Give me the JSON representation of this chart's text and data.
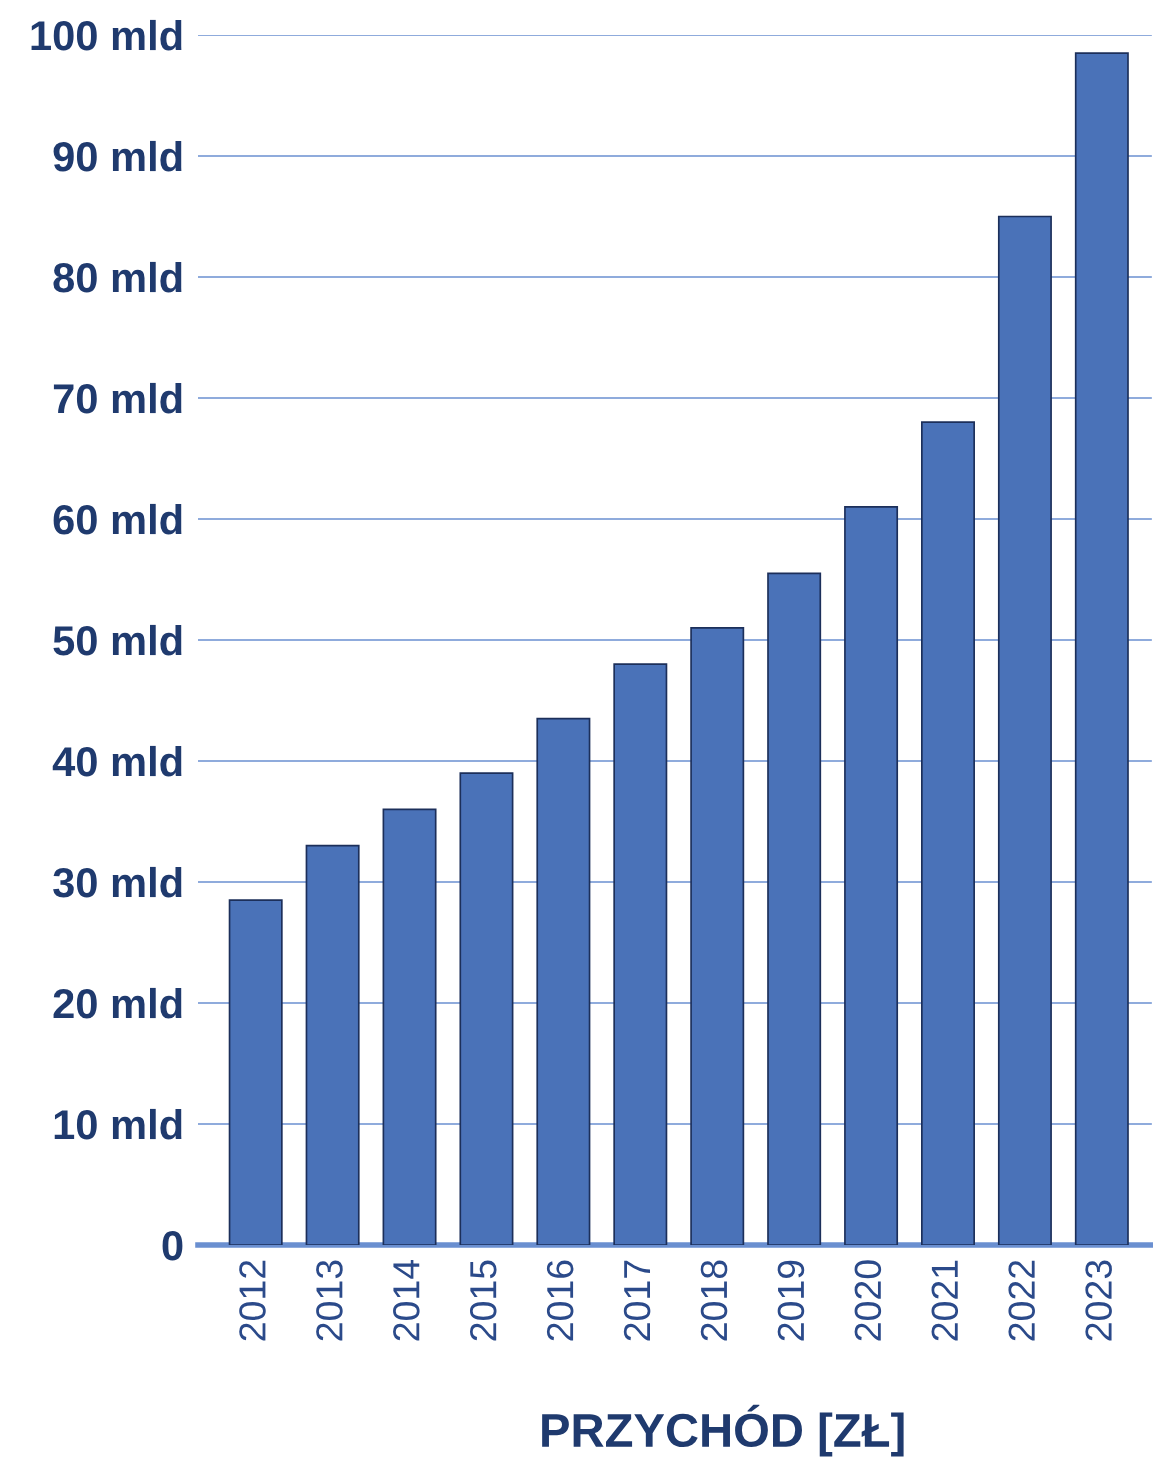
{
  "chart_data": {
    "type": "bar",
    "xlabel": "PRZYCHÓD [ZŁ]",
    "categories": [
      "2012",
      "2013",
      "2014",
      "2015",
      "2016",
      "2017",
      "2018",
      "2019",
      "2020",
      "2021",
      "2022",
      "2023"
    ],
    "values": [
      28.5,
      33,
      36,
      39,
      43.5,
      48,
      51,
      55.5,
      61,
      68,
      85,
      98.5
    ],
    "color": "#4a72b8",
    "ylim": [
      0,
      100
    ],
    "yticks": [
      0,
      {
        "value": 10,
        "label": "10 mld"
      },
      {
        "value": 20,
        "label": "20 mld"
      },
      {
        "value": 30,
        "label": "30 mld"
      },
      {
        "value": 40,
        "label": "40 mld"
      },
      {
        "value": 50,
        "label": "50 mld"
      },
      {
        "value": 60,
        "label": "60 mld"
      },
      {
        "value": 70,
        "label": "70 mld"
      },
      {
        "value": 80,
        "label": "80 mld"
      },
      {
        "value": 90,
        "label": "90 mld"
      },
      {
        "value": 100,
        "label": "100 mld"
      }
    ],
    "grid": "y"
  }
}
